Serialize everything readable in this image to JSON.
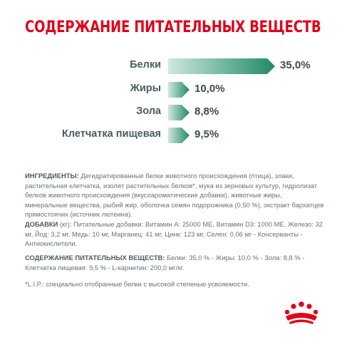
{
  "title": "СОДЕРЖАНИЕ ПИТАТЕЛЬНЫХ ВЕЩЕСТВ",
  "nutrients": [
    {
      "label": "Белки",
      "value_text": "35,0%",
      "value": 35.0
    },
    {
      "label": "Жиры",
      "value_text": "10,0%",
      "value": 10.0
    },
    {
      "label": "Зола",
      "value_text": "8,8%",
      "value": 8.8
    },
    {
      "label": "Клетчатка пищевая",
      "value_text": "9,5%",
      "value": 9.5
    }
  ],
  "ingredients": {
    "label": "ИНГРЕДИЕНТЫ:",
    "text": " Дегидратированные белки животного происхождения (птица), злаки, растительная клетчатка, изолят растительных белков*, мука из зерновых культур, гидролизат белков животного происхождения (вкусоароматические добавки), животные жиры, минеральные вещества, рыбий жир, оболочка семян подорожника (0,50 %), экстракт бархатцев прямостоячих (источник лютеина)."
  },
  "additives": {
    "label": "ДОБАВКИ",
    "text": " (кг): Питательные добавки: Витамин А: 25000 МЕ, Витамин D3: 1000 МЕ, Железо: 32 мг, Йод: 3,2 мг, Медь: 10 мг, Марганец: 41 мг, Цинк: 123 мг, Селен: 0,06 мг - Консерванты - Антиокислители."
  },
  "nutrients_summary": {
    "label": "СОДЕРЖАНИЕ ПИТАТЕЛЬНЫХ ВЕЩЕСТВ:",
    "text": " Белки: 35,0 % - Жиры: 10,0 % - Зола: 8,8 % - Клетчатка пищевая: 9,5 % - L-карнитин: 200,0 мг/кг."
  },
  "footnote": "*L.I.P.: специально отобранные белки с высокой степенью усвояемости.",
  "colors": {
    "accent": "#e2001a",
    "bar_light": "#cfe8dd",
    "bar_dark": "#1f8a66"
  }
}
